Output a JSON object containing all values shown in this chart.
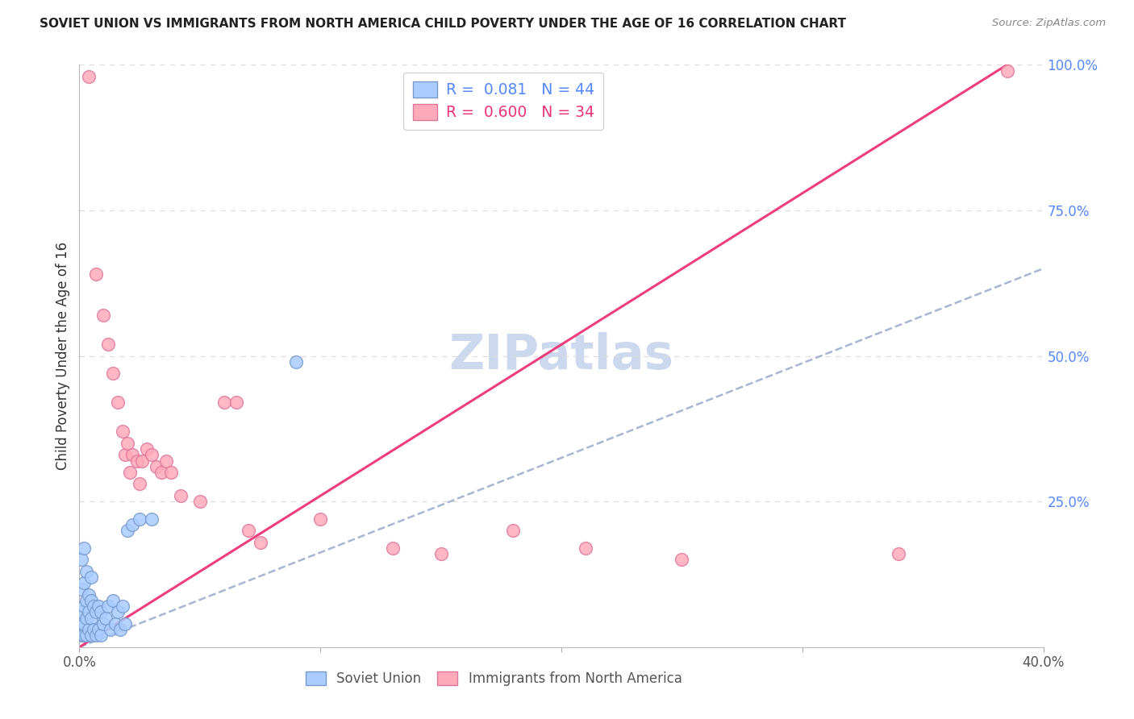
{
  "title": "SOVIET UNION VS IMMIGRANTS FROM NORTH AMERICA CHILD POVERTY UNDER THE AGE OF 16 CORRELATION CHART",
  "source": "Source: ZipAtlas.com",
  "ylabel": "Child Poverty Under the Age of 16",
  "R_soviet": 0.081,
  "N_soviet": 44,
  "R_immigrants": 0.6,
  "N_immigrants": 34,
  "background_color": "#ffffff",
  "grid_color": "#dddddd",
  "soviet_color": "#aaccff",
  "soviet_edge_color": "#7799cc",
  "immigrant_color": "#ffaabb",
  "immigrant_edge_color": "#dd7799",
  "soviet_line_color": "#99aacc",
  "immigrant_line_color": "#ee3377",
  "right_tick_color": "#5588ff",
  "watermark_color": "#ccd8ee",
  "soviet_x": [
    0.001,
    0.001,
    0.001,
    0.001,
    0.001,
    0.002,
    0.002,
    0.002,
    0.002,
    0.002,
    0.003,
    0.003,
    0.003,
    0.003,
    0.004,
    0.004,
    0.004,
    0.005,
    0.005,
    0.005,
    0.005,
    0.006,
    0.006,
    0.007,
    0.007,
    0.008,
    0.008,
    0.009,
    0.009,
    0.01,
    0.011,
    0.012,
    0.013,
    0.014,
    0.015,
    0.016,
    0.017,
    0.018,
    0.019,
    0.02,
    0.022,
    0.025,
    0.03,
    0.09
  ],
  "soviet_y": [
    0.02,
    0.04,
    0.06,
    0.1,
    0.15,
    0.02,
    0.04,
    0.07,
    0.11,
    0.17,
    0.02,
    0.05,
    0.08,
    0.13,
    0.03,
    0.06,
    0.09,
    0.02,
    0.05,
    0.08,
    0.12,
    0.03,
    0.07,
    0.02,
    0.06,
    0.03,
    0.07,
    0.02,
    0.06,
    0.04,
    0.05,
    0.07,
    0.03,
    0.08,
    0.04,
    0.06,
    0.03,
    0.07,
    0.04,
    0.2,
    0.21,
    0.22,
    0.22,
    0.49
  ],
  "immigrant_x": [
    0.004,
    0.007,
    0.01,
    0.012,
    0.014,
    0.016,
    0.018,
    0.019,
    0.02,
    0.021,
    0.022,
    0.024,
    0.025,
    0.026,
    0.028,
    0.03,
    0.032,
    0.034,
    0.036,
    0.038,
    0.042,
    0.05,
    0.06,
    0.065,
    0.07,
    0.075,
    0.1,
    0.13,
    0.15,
    0.18,
    0.21,
    0.25,
    0.34,
    0.385
  ],
  "immigrant_y": [
    0.98,
    0.64,
    0.57,
    0.52,
    0.47,
    0.42,
    0.37,
    0.33,
    0.35,
    0.3,
    0.33,
    0.32,
    0.28,
    0.32,
    0.34,
    0.33,
    0.31,
    0.3,
    0.32,
    0.3,
    0.26,
    0.25,
    0.42,
    0.42,
    0.2,
    0.18,
    0.22,
    0.17,
    0.16,
    0.2,
    0.17,
    0.15,
    0.16,
    0.99
  ],
  "xlim": [
    0.0,
    0.4
  ],
  "ylim": [
    0.0,
    1.0
  ],
  "x_ticks": [
    0.0,
    0.1,
    0.2,
    0.3,
    0.4
  ],
  "x_tick_labels": [
    "0.0%",
    "",
    "",
    "",
    "40.0%"
  ],
  "y_ticks": [
    0.0,
    0.25,
    0.5,
    0.75,
    1.0
  ],
  "y_tick_labels": [
    "",
    "25.0%",
    "50.0%",
    "75.0%",
    "100.0%"
  ]
}
